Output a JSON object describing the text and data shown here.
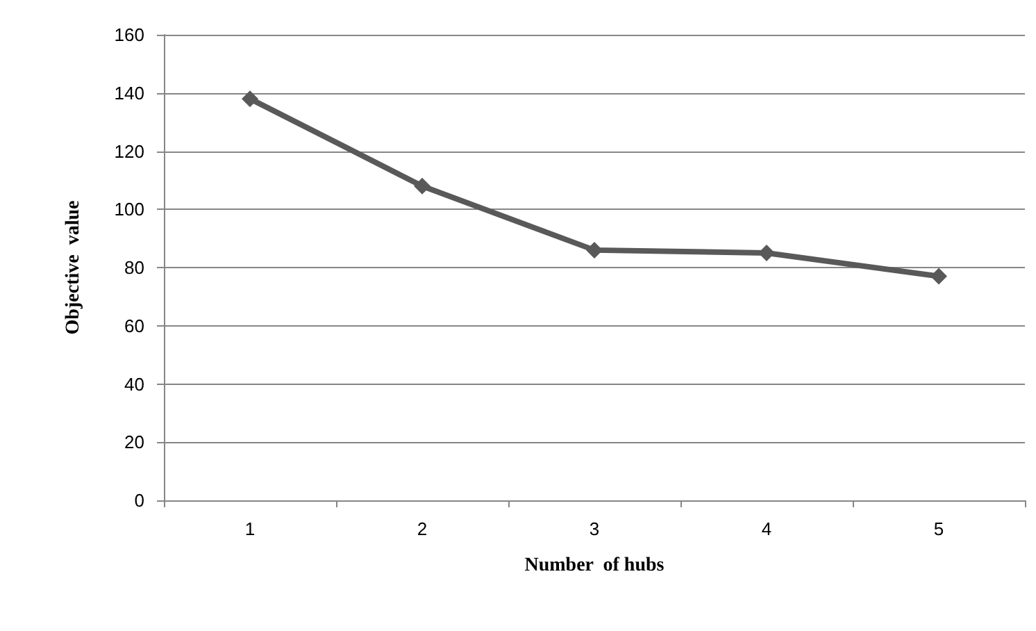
{
  "chart_data": {
    "type": "line",
    "xlabel": "Number  of hubs",
    "ylabel": "Objective  value",
    "categories": [
      "1",
      "2",
      "3",
      "4",
      "5"
    ],
    "series": [
      {
        "color": "#595959",
        "values": [
          138,
          108,
          86,
          85,
          77
        ]
      }
    ],
    "ylim": [
      0,
      160
    ],
    "yticks": [
      0,
      20,
      40,
      60,
      80,
      100,
      120,
      140,
      160
    ],
    "grid": "y",
    "marker": "diamond",
    "line_style": "solid"
  }
}
